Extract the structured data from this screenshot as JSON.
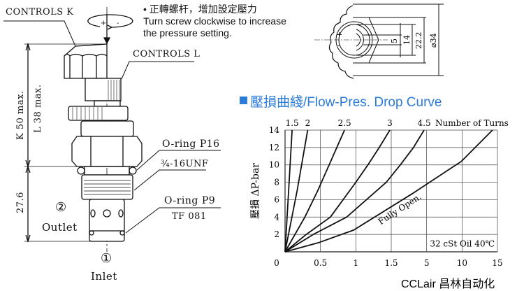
{
  "instruction": {
    "bullet": "•",
    "zh": "正轉螺杆，增加設定壓力",
    "en_line1": "Turn screw clockwise to increase",
    "en_line2": "the pressure setting."
  },
  "rotation_symbols": {
    "plus": "+",
    "minus": "-"
  },
  "valve_drawing": {
    "controls_k": "CONTROLS K",
    "controls_l": "CONTROLS L",
    "dim_k": "K 50 max.",
    "dim_l": "L 38 max.",
    "dim_lower": "27.6",
    "oring_p16": "O-ring P16",
    "thread": "¾-16UNF",
    "oring_p9": "O-ring P9",
    "tf": "TF 081",
    "port2_num": "②",
    "port2": "Outlet",
    "port1_num": "①",
    "port1": "Inlet"
  },
  "end_view": {
    "plus": "+",
    "minus": "-",
    "dims": [
      "5",
      "14",
      "22.2",
      "⌀34"
    ]
  },
  "chart_title": "壓損曲綫/Flow-Pres. Drop Curve",
  "watermark": "CCLair 昌林自动化",
  "colors": {
    "title": "#2b7bd8",
    "lines": "#111111",
    "grid": "#333333"
  },
  "chart_data": {
    "type": "line",
    "ylabel": "壓損  ΔP-bar",
    "top_label": "Number of Turns",
    "annotation": "32 cSt Oil 40℃",
    "curve_label": "Fully Open.",
    "x_ticks": [
      "0",
      "0.5",
      "1",
      "1.5",
      "5",
      "10",
      "15"
    ],
    "x_tick_values": [
      0,
      0.5,
      1,
      1.5,
      5,
      10,
      15
    ],
    "x_scale": "piecewise (non-uniform ticks)",
    "y_ticks": [
      "2",
      "4",
      "6",
      "8",
      "10",
      "12",
      "14"
    ],
    "y_zero_label": "0",
    "ylim": [
      0,
      14
    ],
    "xlim": [
      0,
      15
    ],
    "grid": true,
    "series": [
      {
        "name": "1.5",
        "points": [
          [
            0,
            0
          ],
          [
            0.05,
            7
          ],
          [
            0.1,
            14
          ]
        ]
      },
      {
        "name": "2",
        "points": [
          [
            0,
            0
          ],
          [
            0.17,
            7
          ],
          [
            0.32,
            14
          ]
        ]
      },
      {
        "name": "2.5",
        "points": [
          [
            0,
            0
          ],
          [
            0.28,
            4
          ],
          [
            0.46,
            7
          ],
          [
            0.84,
            14
          ]
        ]
      },
      {
        "name": "3",
        "points": [
          [
            0,
            0
          ],
          [
            0.3,
            2
          ],
          [
            0.64,
            4
          ],
          [
            1.0,
            8
          ],
          [
            1.17,
            10
          ],
          [
            1.33,
            12
          ],
          [
            1.48,
            14
          ]
        ]
      },
      {
        "name": "4.5",
        "points": [
          [
            0,
            0
          ],
          [
            0.4,
            2
          ],
          [
            0.87,
            4
          ],
          [
            1.43,
            8
          ],
          [
            2.4,
            10
          ],
          [
            3.7,
            12
          ],
          [
            4.75,
            14
          ]
        ]
      },
      {
        "name": "Fully Open.",
        "points": [
          [
            0,
            0
          ],
          [
            0.48,
            1.07
          ],
          [
            0.97,
            2.5
          ],
          [
            3.6,
            6.7
          ],
          [
            9.9,
            10.4
          ],
          [
            14.3,
            14
          ]
        ]
      }
    ]
  }
}
